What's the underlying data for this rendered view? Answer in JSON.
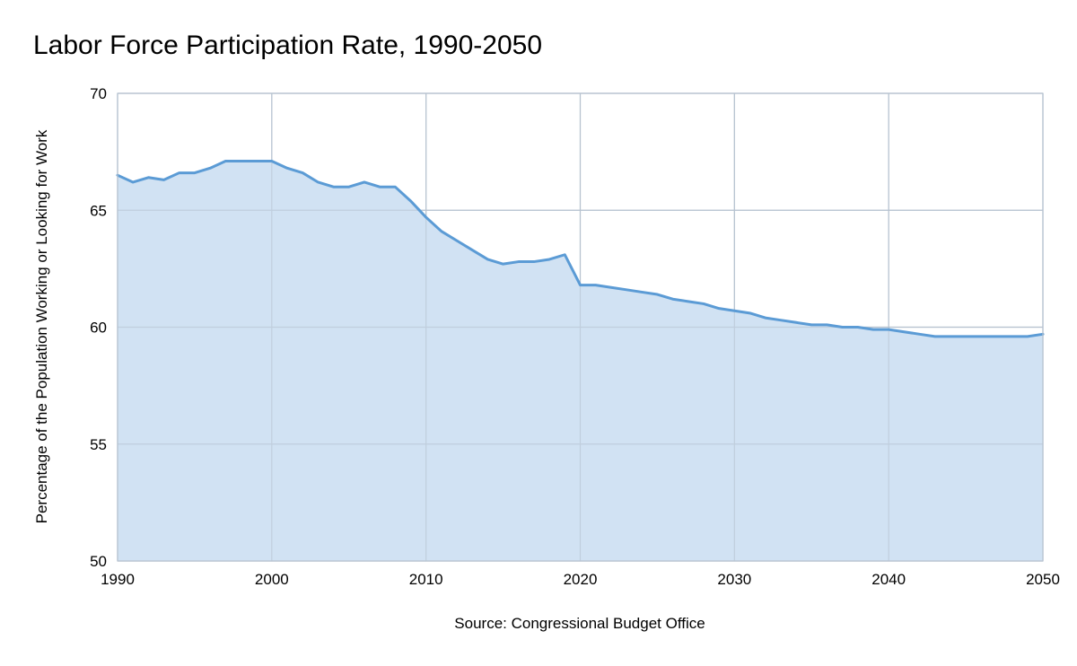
{
  "chart_data": {
    "type": "area",
    "title": "Labor Force Participation Rate, 1990-2050",
    "xlabel": "Source: Congressional Budget Office",
    "ylabel": "Percentage of the Population Working or Looking for Work",
    "xlim": [
      1990,
      2050
    ],
    "ylim": [
      50,
      70
    ],
    "x_ticks": [
      1990,
      2000,
      2010,
      2020,
      2030,
      2040,
      2050
    ],
    "y_ticks": [
      50,
      55,
      60,
      65,
      70
    ],
    "grid": true,
    "colors": {
      "line": "#5b9bd5",
      "fill": "#cfe0f2",
      "grid": "#b7c3d0"
    },
    "series": [
      {
        "x": [
          1990,
          1991,
          1992,
          1993,
          1994,
          1995,
          1996,
          1997,
          1998,
          1999,
          2000,
          2001,
          2002,
          2003,
          2004,
          2005,
          2006,
          2007,
          2008,
          2009,
          2010,
          2011,
          2012,
          2013,
          2014,
          2015,
          2016,
          2017,
          2018,
          2019,
          2020,
          2021,
          2022,
          2023,
          2024,
          2025,
          2026,
          2027,
          2028,
          2029,
          2030,
          2031,
          2032,
          2033,
          2034,
          2035,
          2036,
          2037,
          2038,
          2039,
          2040,
          2041,
          2042,
          2043,
          2044,
          2045,
          2046,
          2047,
          2048,
          2049,
          2050
        ],
        "values": [
          66.5,
          66.2,
          66.4,
          66.3,
          66.6,
          66.6,
          66.8,
          67.1,
          67.1,
          67.1,
          67.1,
          66.8,
          66.6,
          66.2,
          66.0,
          66.0,
          66.2,
          66.0,
          66.0,
          65.4,
          64.7,
          64.1,
          63.7,
          63.3,
          62.9,
          62.7,
          62.8,
          62.8,
          62.9,
          63.1,
          61.8,
          61.8,
          61.7,
          61.6,
          61.5,
          61.4,
          61.2,
          61.1,
          61.0,
          60.8,
          60.7,
          60.6,
          60.4,
          60.3,
          60.2,
          60.1,
          60.1,
          60.0,
          60.0,
          59.9,
          59.9,
          59.8,
          59.7,
          59.6,
          59.6,
          59.6,
          59.6,
          59.6,
          59.6,
          59.6,
          59.7
        ]
      }
    ]
  }
}
